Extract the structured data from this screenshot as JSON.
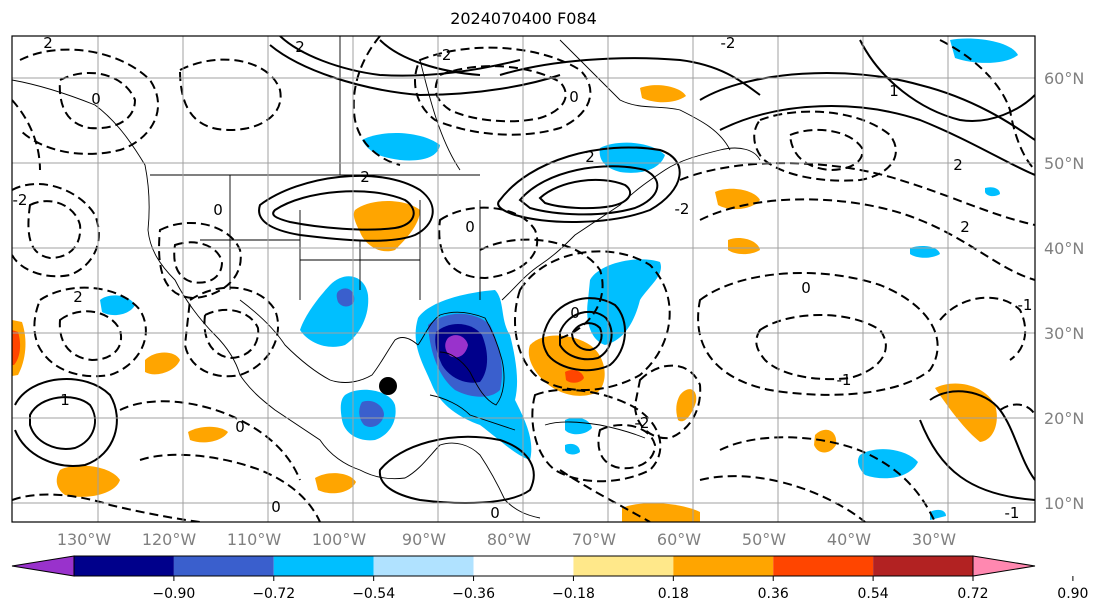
{
  "title": "2024070400 F084",
  "longitude_labels": [
    "130°W",
    "120°W",
    "110°W",
    "100°W",
    "90°W",
    "80°W",
    "70°W",
    "60°W",
    "50°W",
    "40°W",
    "30°W"
  ],
  "latitude_labels": [
    "60°N",
    "50°N",
    "40°N",
    "30°N",
    "20°N",
    "10°N"
  ],
  "colorbar": {
    "ticks": [
      "−0.90",
      "−0.72",
      "−0.54",
      "−0.36",
      "−0.18",
      "0.18",
      "0.36",
      "0.54",
      "0.72",
      "0.90"
    ],
    "colors": [
      "#9932cc",
      "#00008b",
      "#3a5fcd",
      "#00bfff",
      "#b0e2ff",
      "#ffffff",
      "#ffe88a",
      "#ffa500",
      "#ff4500",
      "#b22222",
      "#ff88b0"
    ]
  },
  "contour_labels": [
    "2",
    "0",
    "2",
    "-2",
    "2",
    "0",
    "-2",
    "2",
    "0",
    "2",
    "-1",
    "-2",
    "2",
    "0",
    "1",
    "-1",
    "0",
    "0",
    "0",
    "-2",
    "2",
    "0",
    "-1",
    "0",
    "-2",
    "1"
  ],
  "colors": {
    "land_line": "#000000",
    "grid": "#a0a0a0",
    "tick_text": "#808080"
  },
  "marker": "storm-center-dot"
}
